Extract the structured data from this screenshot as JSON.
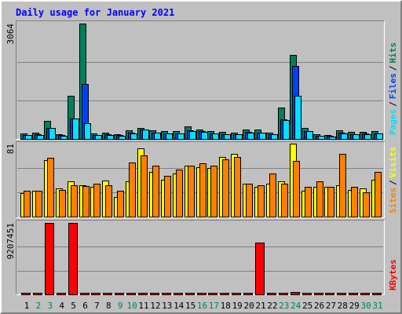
{
  "chart_data": [
    {
      "type": "bar",
      "title": "Daily usage for January 2021",
      "legend_separator": "/",
      "ylim": [
        0,
        3064
      ],
      "yticks": [
        3064
      ],
      "series": [
        {
          "name": "Pages",
          "color": "#00e0ff",
          "values": [
            100,
            110,
            290,
            90,
            540,
            420,
            100,
            110,
            90,
            150,
            250,
            160,
            140,
            140,
            210,
            190,
            140,
            120,
            120,
            170,
            160,
            120,
            500,
            1140,
            200,
            80,
            70,
            150,
            120,
            130,
            140
          ]
        },
        {
          "name": "Files",
          "color": "#0040ff",
          "values": [
            110,
            120,
            290,
            100,
            540,
            1460,
            110,
            120,
            100,
            160,
            260,
            170,
            150,
            150,
            220,
            200,
            150,
            130,
            130,
            180,
            170,
            130,
            520,
            1930,
            210,
            90,
            80,
            160,
            130,
            140,
            150
          ]
        },
        {
          "name": "Hits",
          "color": "#00805c",
          "values": [
            140,
            160,
            480,
            130,
            1140,
            3064,
            150,
            160,
            130,
            230,
            290,
            230,
            200,
            210,
            330,
            260,
            200,
            180,
            170,
            250,
            240,
            170,
            830,
            2220,
            290,
            120,
            110,
            230,
            180,
            190,
            200
          ]
        }
      ]
    },
    {
      "type": "bar",
      "legend_separator": "/",
      "ylim": [
        0,
        81
      ],
      "yticks": [
        81
      ],
      "series": [
        {
          "name": "Sites",
          "color": "#ff8000",
          "values": [
            29,
            29,
            65,
            30,
            35,
            34,
            37,
            35,
            29,
            60,
            68,
            57,
            45,
            52,
            57,
            59,
            57,
            64,
            66,
            37,
            35,
            48,
            37,
            62,
            33,
            39,
            33,
            70,
            33,
            27,
            50
          ]
        },
        {
          "name": "Visits",
          "color": "#ffff00",
          "values": [
            26,
            29,
            63,
            31,
            39,
            35,
            33,
            40,
            22,
            39,
            76,
            50,
            41,
            48,
            57,
            55,
            54,
            66,
            70,
            37,
            33,
            37,
            39,
            81,
            29,
            33,
            33,
            35,
            30,
            31,
            41
          ]
        }
      ]
    },
    {
      "type": "bar",
      "ylim": [
        0,
        9207451
      ],
      "yticks": [
        9207451
      ],
      "categories": [
        "1",
        "2",
        "3",
        "4",
        "5",
        "6",
        "7",
        "8",
        "9",
        "10",
        "11",
        "12",
        "13",
        "14",
        "15",
        "16",
        "17",
        "18",
        "19",
        "20",
        "21",
        "22",
        "23",
        "24",
        "25",
        "26",
        "27",
        "28",
        "29",
        "30",
        "31"
      ],
      "category_colors": [
        "#000000",
        "#00805c",
        "#00805c",
        "#000000",
        "#000000",
        "#000000",
        "#000000",
        "#000000",
        "#00805c",
        "#00805c",
        "#000000",
        "#000000",
        "#000000",
        "#000000",
        "#000000",
        "#00805c",
        "#00805c",
        "#000000",
        "#000000",
        "#000000",
        "#000000",
        "#000000",
        "#00805c",
        "#00805c",
        "#000000",
        "#000000",
        "#000000",
        "#000000",
        "#000000",
        "#00805c",
        "#00805c"
      ],
      "series": [
        {
          "name": "KBytes",
          "color": "#ff0000",
          "values": [
            50000,
            50000,
            9207451,
            50000,
            9207451,
            50000,
            50000,
            50000,
            50000,
            50000,
            50000,
            50000,
            50000,
            50000,
            50000,
            50000,
            50000,
            50000,
            50000,
            50000,
            6680000,
            50000,
            50000,
            300000,
            50000,
            50000,
            50000,
            50000,
            50000,
            50000,
            50000
          ]
        }
      ]
    }
  ]
}
